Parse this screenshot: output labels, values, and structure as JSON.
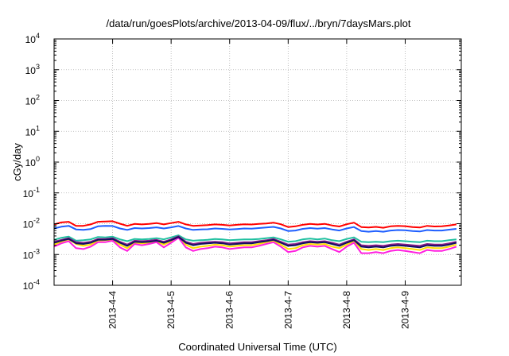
{
  "chart_data": {
    "type": "line",
    "title": "/data/run/goesPlots/archive/2013-04-09/flux/../bryn/7daysMars.plot",
    "xlabel": "Coordinated Universal Time (UTC)",
    "ylabel": "cGy/day",
    "yscale": "log",
    "ylim": [
      0.0001,
      10000
    ],
    "xlim": [
      "2013-04-03 00:00",
      "2013-04-09 23:00"
    ],
    "y_ticks": [
      {
        "value": 0.0001,
        "base": "10",
        "exp": "-4"
      },
      {
        "value": 0.001,
        "base": "10",
        "exp": "-3"
      },
      {
        "value": 0.01,
        "base": "10",
        "exp": "-2"
      },
      {
        "value": 0.1,
        "base": "10",
        "exp": "-1"
      },
      {
        "value": 1,
        "base": "10",
        "exp": "0"
      },
      {
        "value": 10,
        "base": "10",
        "exp": "1"
      },
      {
        "value": 100,
        "base": "10",
        "exp": "2"
      },
      {
        "value": 1000,
        "base": "10",
        "exp": "3"
      },
      {
        "value": 10000,
        "base": "10",
        "exp": "4"
      }
    ],
    "x_ticks": [
      {
        "value": "2013-04-04 00:00",
        "label": "2013-4-4"
      },
      {
        "value": "2013-04-05 00:00",
        "label": "2013-4-5"
      },
      {
        "value": "2013-04-06 00:00",
        "label": "2013-4-6"
      },
      {
        "value": "2013-04-07 00:00",
        "label": "2013-4-7"
      },
      {
        "value": "2013-04-08 00:00",
        "label": "2013-4-8"
      },
      {
        "value": "2013-04-09 00:00",
        "label": "2013-4-9"
      }
    ],
    "grid": true,
    "legend": "none",
    "x": [
      "2013-04-03 00:00",
      "2013-04-03 03:00",
      "2013-04-03 06:00",
      "2013-04-03 09:00",
      "2013-04-03 12:00",
      "2013-04-03 15:00",
      "2013-04-03 18:00",
      "2013-04-03 21:00",
      "2013-04-04 00:00",
      "2013-04-04 03:00",
      "2013-04-04 06:00",
      "2013-04-04 09:00",
      "2013-04-04 12:00",
      "2013-04-04 15:00",
      "2013-04-04 18:00",
      "2013-04-04 21:00",
      "2013-04-05 00:00",
      "2013-04-05 03:00",
      "2013-04-05 06:00",
      "2013-04-05 09:00",
      "2013-04-05 12:00",
      "2013-04-05 15:00",
      "2013-04-05 18:00",
      "2013-04-05 21:00",
      "2013-04-06 00:00",
      "2013-04-06 03:00",
      "2013-04-06 06:00",
      "2013-04-06 09:00",
      "2013-04-06 12:00",
      "2013-04-06 15:00",
      "2013-04-06 18:00",
      "2013-04-06 21:00",
      "2013-04-07 00:00",
      "2013-04-07 03:00",
      "2013-04-07 06:00",
      "2013-04-07 09:00",
      "2013-04-07 12:00",
      "2013-04-07 15:00",
      "2013-04-07 18:00",
      "2013-04-07 21:00",
      "2013-04-08 00:00",
      "2013-04-08 03:00",
      "2013-04-08 06:00",
      "2013-04-08 09:00",
      "2013-04-08 12:00",
      "2013-04-08 15:00",
      "2013-04-08 18:00",
      "2013-04-08 21:00",
      "2013-04-09 00:00",
      "2013-04-09 03:00",
      "2013-04-09 06:00",
      "2013-04-09 09:00",
      "2013-04-09 12:00",
      "2013-04-09 15:00",
      "2013-04-09 18:00",
      "2013-04-09 21:00"
    ],
    "series": [
      {
        "color": "#ff0000",
        "values": [
          0.0095,
          0.011,
          0.0115,
          0.0085,
          0.0085,
          0.0095,
          0.0115,
          0.0118,
          0.012,
          0.01,
          0.0085,
          0.0098,
          0.0095,
          0.0098,
          0.0105,
          0.0095,
          0.0105,
          0.0115,
          0.0095,
          0.0085,
          0.0088,
          0.009,
          0.0095,
          0.0092,
          0.0088,
          0.0092,
          0.0096,
          0.0094,
          0.0098,
          0.0102,
          0.0108,
          0.0096,
          0.0078,
          0.0082,
          0.0092,
          0.0098,
          0.0094,
          0.0099,
          0.0088,
          0.0081,
          0.0096,
          0.0108,
          0.0078,
          0.0075,
          0.0079,
          0.0074,
          0.0082,
          0.0085,
          0.0083,
          0.0078,
          0.0075,
          0.0085,
          0.0081,
          0.0082,
          0.0088,
          0.0095
        ]
      },
      {
        "color": "#1f5fff",
        "values": [
          0.007,
          0.008,
          0.0085,
          0.0065,
          0.0063,
          0.0067,
          0.0082,
          0.0085,
          0.0084,
          0.007,
          0.0063,
          0.0072,
          0.007,
          0.0072,
          0.0076,
          0.007,
          0.0076,
          0.0084,
          0.007,
          0.0063,
          0.0065,
          0.0066,
          0.007,
          0.0068,
          0.0065,
          0.0067,
          0.007,
          0.0069,
          0.0072,
          0.0075,
          0.0079,
          0.007,
          0.0058,
          0.006,
          0.0068,
          0.0072,
          0.0069,
          0.0072,
          0.0065,
          0.006,
          0.007,
          0.0078,
          0.0058,
          0.0055,
          0.0058,
          0.0055,
          0.006,
          0.0062,
          0.0061,
          0.0058,
          0.0056,
          0.0062,
          0.006,
          0.006,
          0.0064,
          0.0068
        ]
      },
      {
        "color": "#20c0a0",
        "values": [
          0.003,
          0.0035,
          0.0038,
          0.0028,
          0.0029,
          0.0031,
          0.0037,
          0.0036,
          0.0038,
          0.0031,
          0.0027,
          0.0032,
          0.0031,
          0.0032,
          0.0034,
          0.0031,
          0.0036,
          0.0042,
          0.0031,
          0.0028,
          0.0029,
          0.003,
          0.0032,
          0.0031,
          0.0029,
          0.003,
          0.0031,
          0.0031,
          0.0032,
          0.0034,
          0.0036,
          0.0031,
          0.0026,
          0.0027,
          0.0031,
          0.0033,
          0.0031,
          0.0033,
          0.0029,
          0.0027,
          0.0032,
          0.0036,
          0.0026,
          0.0025,
          0.0026,
          0.0025,
          0.0027,
          0.0028,
          0.0027,
          0.0026,
          0.0025,
          0.0028,
          0.0027,
          0.0027,
          0.0029,
          0.0031
        ]
      },
      {
        "color": "#ffe000",
        "values": [
          0.0021,
          0.0026,
          0.0031,
          0.0022,
          0.0019,
          0.0021,
          0.0028,
          0.0029,
          0.003,
          0.0021,
          0.0016,
          0.0024,
          0.0023,
          0.0024,
          0.0027,
          0.0021,
          0.0027,
          0.0037,
          0.0021,
          0.0016,
          0.0018,
          0.0019,
          0.0021,
          0.002,
          0.0018,
          0.0019,
          0.002,
          0.002,
          0.0022,
          0.0025,
          0.0028,
          0.0021,
          0.0015,
          0.0016,
          0.002,
          0.0022,
          0.0021,
          0.0022,
          0.0018,
          0.0016,
          0.0021,
          0.0027,
          0.0015,
          0.0014,
          0.0015,
          0.0014,
          0.0016,
          0.0017,
          0.0016,
          0.0015,
          0.0014,
          0.0017,
          0.0016,
          0.0016,
          0.0018,
          0.0021
        ]
      },
      {
        "color": "#ff20e0",
        "values": [
          0.0018,
          0.0023,
          0.0027,
          0.0016,
          0.0015,
          0.0018,
          0.0025,
          0.0025,
          0.0028,
          0.0017,
          0.0013,
          0.0022,
          0.002,
          0.0022,
          0.0025,
          0.0017,
          0.0024,
          0.0035,
          0.0017,
          0.0013,
          0.0015,
          0.0016,
          0.0018,
          0.0017,
          0.0015,
          0.0016,
          0.0017,
          0.0017,
          0.0019,
          0.0022,
          0.0025,
          0.0018,
          0.0012,
          0.0013,
          0.0017,
          0.0019,
          0.0018,
          0.0019,
          0.0015,
          0.0012,
          0.0018,
          0.0024,
          0.0011,
          0.0011,
          0.0012,
          0.0011,
          0.0013,
          0.0014,
          0.0013,
          0.0012,
          0.0011,
          0.0014,
          0.0013,
          0.0013,
          0.0015,
          0.0018
        ]
      },
      {
        "color": "#8a1c8a",
        "values": [
          0.0026,
          0.003,
          0.0034,
          0.0025,
          0.0024,
          0.0026,
          0.0032,
          0.0032,
          0.0034,
          0.0026,
          0.0021,
          0.0028,
          0.0027,
          0.0028,
          0.003,
          0.0026,
          0.0031,
          0.0039,
          0.0026,
          0.0022,
          0.0024,
          0.0025,
          0.0026,
          0.0025,
          0.0023,
          0.0024,
          0.0025,
          0.0025,
          0.0027,
          0.0029,
          0.0032,
          0.0026,
          0.0021,
          0.0022,
          0.0025,
          0.0027,
          0.0026,
          0.0027,
          0.0024,
          0.0021,
          0.0026,
          0.0031,
          0.002,
          0.0019,
          0.002,
          0.0019,
          0.0021,
          0.0022,
          0.0021,
          0.002,
          0.0019,
          0.0022,
          0.0021,
          0.0021,
          0.0023,
          0.0026
        ]
      },
      {
        "color": "#101060",
        "values": [
          0.0024,
          0.0028,
          0.0032,
          0.0023,
          0.0022,
          0.0024,
          0.003,
          0.003,
          0.0032,
          0.0024,
          0.0019,
          0.0026,
          0.0025,
          0.0026,
          0.0028,
          0.0024,
          0.0029,
          0.0037,
          0.0024,
          0.002,
          0.0022,
          0.0023,
          0.0024,
          0.0023,
          0.0021,
          0.0022,
          0.0023,
          0.0023,
          0.0025,
          0.0027,
          0.003,
          0.0024,
          0.0019,
          0.002,
          0.0023,
          0.0025,
          0.0024,
          0.0025,
          0.0022,
          0.0019,
          0.0024,
          0.0029,
          0.0018,
          0.0017,
          0.0018,
          0.0017,
          0.0019,
          0.002,
          0.0019,
          0.0018,
          0.0017,
          0.002,
          0.0019,
          0.0019,
          0.0021,
          0.0024
        ]
      }
    ]
  }
}
